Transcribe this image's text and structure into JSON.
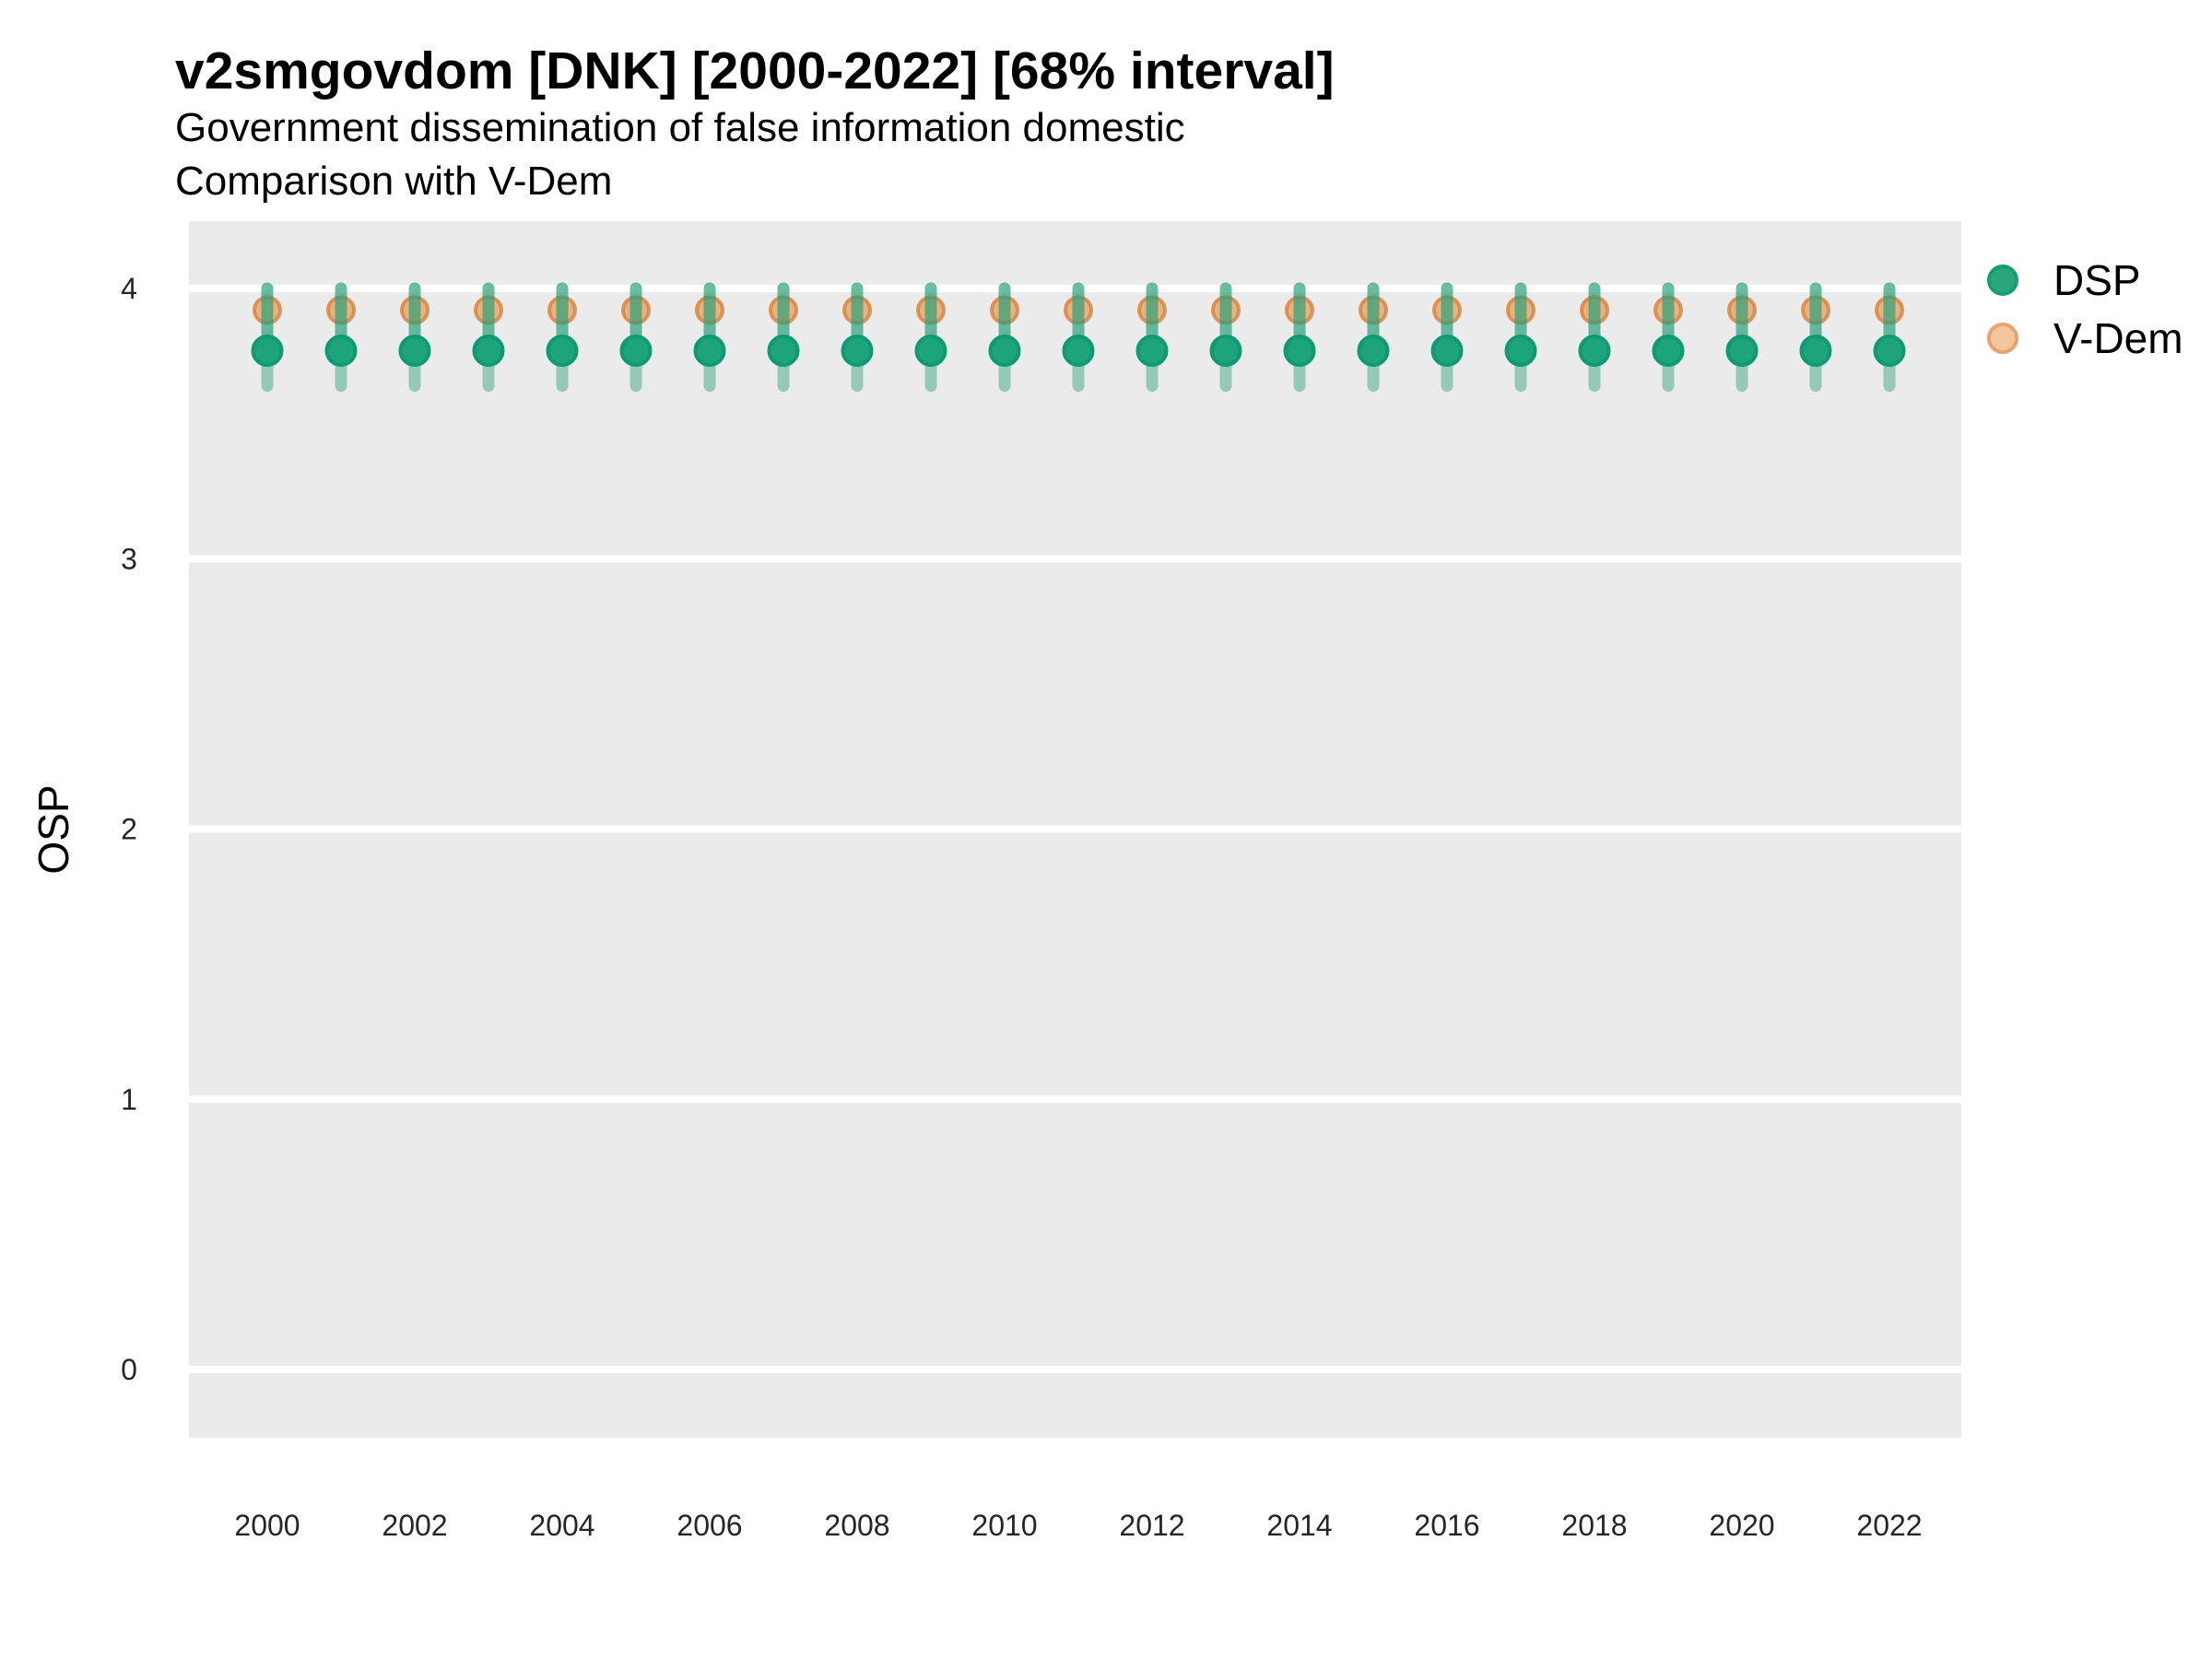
{
  "chart_data": {
    "type": "scatter",
    "title": "v2smgovdom [DNK] [2000-2022] [68% interval]",
    "subtitle": "Government dissemination of false information domestic",
    "subtitle2": "Comparison with V-Dem",
    "ylabel": "OSP",
    "xlabel": "",
    "interval_note": "68% interval",
    "country": "DNK",
    "x": [
      2000,
      2001,
      2002,
      2003,
      2004,
      2005,
      2006,
      2007,
      2008,
      2009,
      2010,
      2011,
      2012,
      2013,
      2014,
      2015,
      2016,
      2017,
      2018,
      2019,
      2020,
      2021,
      2022
    ],
    "x_tick_labels": [
      "2000",
      "2002",
      "2004",
      "2006",
      "2008",
      "2010",
      "2012",
      "2014",
      "2016",
      "2018",
      "2020",
      "2022"
    ],
    "y_ticks": [
      0,
      1,
      2,
      3,
      4
    ],
    "ylim": [
      -0.25,
      4.25
    ],
    "grid": "horizontal-major-white-on-gray",
    "legend_position": "right",
    "series": [
      {
        "name": "DSP",
        "values": [
          3.77,
          3.77,
          3.77,
          3.77,
          3.77,
          3.77,
          3.77,
          3.77,
          3.77,
          3.77,
          3.77,
          3.77,
          3.77,
          3.77,
          3.77,
          3.77,
          3.77,
          3.77,
          3.77,
          3.77,
          3.77,
          3.77,
          3.77
        ],
        "lower": [
          3.64,
          3.64,
          3.64,
          3.64,
          3.64,
          3.64,
          3.64,
          3.64,
          3.64,
          3.64,
          3.64,
          3.64,
          3.64,
          3.64,
          3.64,
          3.64,
          3.64,
          3.64,
          3.64,
          3.64,
          3.64,
          3.64,
          3.64
        ],
        "upper": [
          4.0,
          4.0,
          4.0,
          4.0,
          4.0,
          4.0,
          4.0,
          4.0,
          4.0,
          4.0,
          4.0,
          4.0,
          4.0,
          4.0,
          4.0,
          4.0,
          4.0,
          4.0,
          4.0,
          4.0,
          4.0,
          4.0,
          4.0
        ]
      },
      {
        "name": "V-Dem",
        "values": [
          3.92,
          3.92,
          3.92,
          3.92,
          3.92,
          3.92,
          3.92,
          3.92,
          3.92,
          3.92,
          3.92,
          3.92,
          3.92,
          3.92,
          3.92,
          3.92,
          3.92,
          3.92,
          3.92,
          3.92,
          3.92,
          3.92,
          3.92
        ],
        "lower": [
          3.8,
          3.8,
          3.8,
          3.8,
          3.8,
          3.8,
          3.8,
          3.8,
          3.8,
          3.8,
          3.8,
          3.8,
          3.8,
          3.8,
          3.8,
          3.8,
          3.8,
          3.8,
          3.8,
          3.8,
          3.8,
          3.8,
          3.8
        ],
        "upper": [
          4.0,
          4.0,
          4.0,
          4.0,
          4.0,
          4.0,
          4.0,
          4.0,
          4.0,
          4.0,
          4.0,
          4.0,
          4.0,
          4.0,
          4.0,
          4.0,
          4.0,
          4.0,
          4.0,
          4.0,
          4.0,
          4.0,
          4.0
        ]
      }
    ]
  },
  "colors": {
    "panel_bg": "#ebebeb",
    "gridline": "#ffffff",
    "dsp_point_fill": "#1ea47d",
    "dsp_point_ring": "#0d9b71",
    "vdem_point_fill": "#e89a54",
    "vdem_point_ring": "#d9813a",
    "errorbar_green": "#2aa07a",
    "legend_dsp_fill": "#2aa57e",
    "legend_dsp_ring": "#149e71",
    "legend_vdem_fill": "#f3c79e",
    "legend_vdem_ring": "#e9a26b",
    "tick_text": "#262626",
    "title_text": "#000000"
  }
}
